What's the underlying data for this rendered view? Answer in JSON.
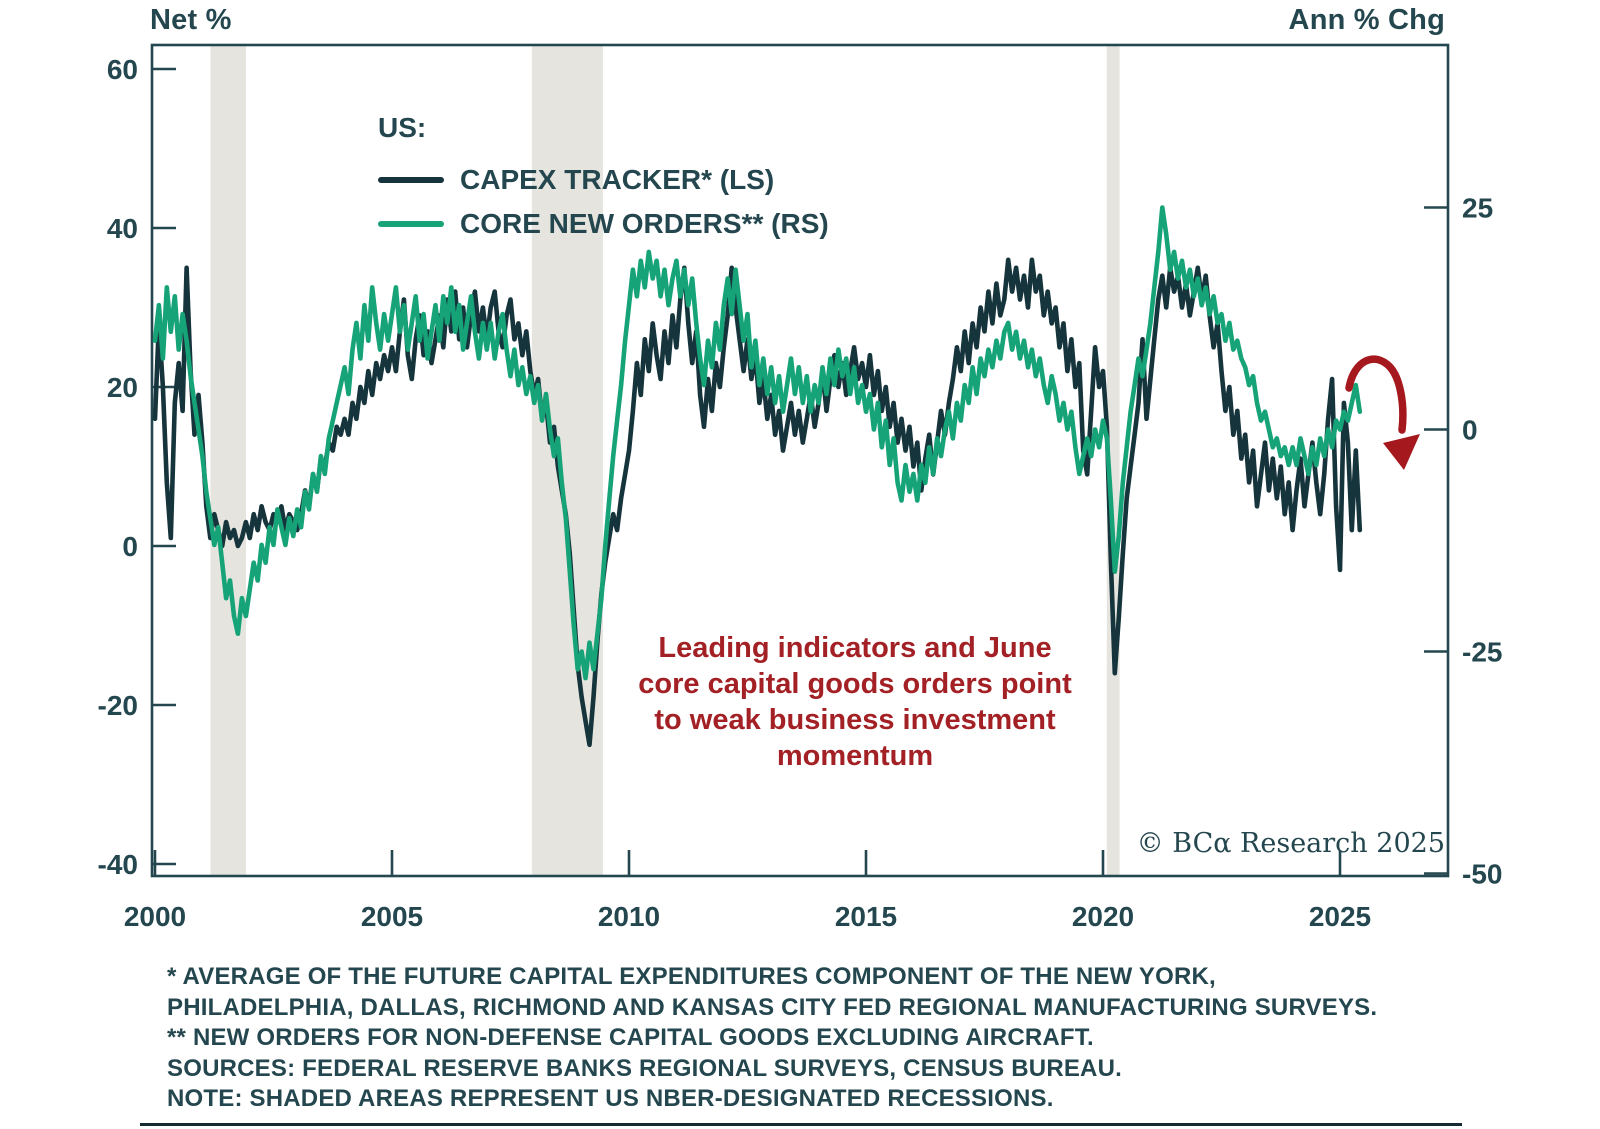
{
  "legend": {
    "group_label": "US:"
  },
  "annotation": {
    "color": "#a32025",
    "lines": [
      "Leading indicators and June",
      "core capital goods orders point",
      "to weak business investment",
      "momentum"
    ]
  },
  "watermark": "© BCα Research 2025",
  "footnotes": [
    "* AVERAGE OF THE FUTURE CAPITAL EXPENDITURES COMPONENT OF THE NEW YORK,",
    "PHILADELPHIA, DALLAS, RICHMOND AND KANSAS CITY FED REGIONAL MANUFACTURING SURVEYS.",
    "** NEW ORDERS FOR NON-DEFENSE CAPITAL GOODS EXCLUDING AIRCRAFT.",
    "SOURCES: FEDERAL RESERVE BANKS REGIONAL SURVEYS, CENSUS BUREAU.",
    "NOTE: SHADED AREAS REPRESENT US NBER-DESIGNATED RECESSIONS."
  ],
  "chart_data": {
    "type": "line",
    "axis_color": "#24464e",
    "recession_color": "#e6e4de",
    "recessions": [
      {
        "start": 2001.17,
        "end": 2001.92
      },
      {
        "start": 2007.95,
        "end": 2009.45
      },
      {
        "start": 2020.08,
        "end": 2020.35
      }
    ],
    "x_ticks": [
      2000,
      2005,
      2010,
      2015,
      2020,
      2025
    ],
    "x_range": [
      2000,
      2027.3
    ],
    "x_start": 2000.0,
    "x_step_months": 1,
    "left_axis": {
      "title": "Net %",
      "ticks": [
        60,
        40,
        20,
        0,
        -20,
        -40
      ],
      "range": [
        -41.5,
        63
      ]
    },
    "right_axis": {
      "title": "Ann % Chg",
      "ticks": [
        25,
        0,
        -25,
        -50
      ],
      "range": [
        -50.3,
        43.6
      ]
    },
    "arrow": {
      "color": "#a5181d",
      "meaning": "downward momentum at end of series"
    },
    "series": [
      {
        "name": "CAPEX TRACKER* (LS)",
        "axis": "left",
        "color": "#16343c",
        "values": [
          16,
          28,
          20,
          8,
          1,
          18,
          23,
          17,
          35,
          22,
          14,
          19,
          13,
          5,
          1,
          4,
          2,
          0,
          3,
          1,
          2,
          0,
          1,
          3,
          1,
          4,
          2,
          5,
          3,
          2,
          4,
          3,
          5,
          2,
          4,
          3,
          2,
          4,
          7,
          5,
          9,
          7,
          11,
          10,
          13,
          12,
          15,
          14,
          16,
          14,
          18,
          16,
          20,
          18,
          22,
          19,
          23,
          21,
          24,
          22,
          25,
          22,
          27,
          31,
          24,
          21,
          26,
          29,
          24,
          27,
          23,
          26,
          29,
          25,
          31,
          27,
          32,
          26,
          30,
          25,
          29,
          32,
          27,
          30,
          26,
          30,
          32,
          27,
          25,
          29,
          31,
          26,
          28,
          24,
          27,
          22,
          19,
          21,
          16,
          18,
          13,
          15,
          10,
          7,
          4,
          -1,
          -8,
          -15,
          -19,
          -22,
          -25,
          -19,
          -12,
          -6,
          -2,
          1,
          4,
          2,
          6,
          9,
          12,
          17,
          23,
          19,
          26,
          22,
          28,
          24,
          21,
          27,
          23,
          29,
          25,
          31,
          35,
          28,
          23,
          27,
          19,
          15,
          21,
          17,
          23,
          20,
          25,
          29,
          35,
          30,
          26,
          22,
          26,
          21,
          24,
          18,
          21,
          16,
          19,
          14,
          17,
          12,
          15,
          18,
          14,
          17,
          13,
          16,
          19,
          15,
          18,
          22,
          17,
          21,
          24,
          20,
          23,
          19,
          22,
          25,
          21,
          23,
          20,
          24,
          19,
          22,
          17,
          20,
          15,
          18,
          13,
          16,
          12,
          15,
          10,
          13,
          7,
          11,
          14,
          9,
          13,
          17,
          14,
          18,
          21,
          25,
          22,
          27,
          23,
          28,
          25,
          30,
          27,
          32,
          28,
          33,
          29,
          31,
          36,
          32,
          35,
          31,
          34,
          30,
          36,
          32,
          34,
          29,
          32,
          28,
          30,
          25,
          28,
          22,
          26,
          20,
          23,
          12,
          9,
          17,
          25,
          20,
          22,
          15,
          -2,
          -16,
          -9,
          -1,
          6,
          10,
          14,
          18,
          26,
          16,
          21,
          26,
          31,
          34,
          30,
          35,
          32,
          34,
          30,
          33,
          29,
          32,
          35,
          31,
          34,
          29,
          25,
          28,
          22,
          17,
          20,
          14,
          17,
          11,
          14,
          8,
          12,
          5,
          9,
          13,
          7,
          11,
          6,
          10,
          4,
          8,
          2,
          7,
          11,
          5,
          9,
          13,
          8,
          4,
          9,
          16,
          21,
          5,
          -3,
          18,
          13,
          2,
          12,
          2
        ]
      },
      {
        "name": "CORE NEW ORDERS** (RS)",
        "axis": "right",
        "color": "#17a378",
        "values": [
          10,
          14,
          8,
          16,
          11,
          15,
          9,
          13,
          10,
          6,
          3,
          0,
          -3,
          -7,
          -10,
          -13,
          -11,
          -15,
          -19,
          -17,
          -21,
          -23,
          -19,
          -21,
          -18,
          -15,
          -17,
          -13,
          -15,
          -11,
          -13,
          -9,
          -11,
          -13,
          -10,
          -12,
          -9,
          -11,
          -7,
          -9,
          -5,
          -7,
          -3,
          -5,
          -1,
          1,
          3,
          5,
          7,
          4,
          9,
          12,
          8,
          14,
          10,
          16,
          12,
          9,
          13,
          10,
          13,
          16,
          11,
          14,
          9,
          12,
          15,
          10,
          13,
          8,
          11,
          14,
          10,
          15,
          12,
          16,
          11,
          14,
          9,
          12,
          15,
          11,
          8,
          12,
          9,
          12,
          8,
          11,
          13,
          9,
          6,
          9,
          5,
          7,
          4,
          6,
          3,
          5,
          1,
          4,
          0,
          -3,
          -1,
          -6,
          -10,
          -16,
          -22,
          -27,
          -25,
          -28,
          -24,
          -27,
          -23,
          -19,
          -13,
          -8,
          -3,
          1,
          5,
          10,
          14,
          18,
          15,
          19,
          16,
          20,
          17,
          19,
          15,
          18,
          14,
          17,
          19,
          15,
          18,
          14,
          17,
          12,
          8,
          5,
          10,
          7,
          12,
          9,
          14,
          17,
          13,
          18,
          14,
          10,
          13,
          7,
          10,
          5,
          8,
          4,
          7,
          3,
          6,
          2,
          5,
          8,
          4,
          7,
          3,
          6,
          2,
          5,
          3,
          7,
          4,
          8,
          5,
          9,
          6,
          8,
          4,
          7,
          3,
          5,
          2,
          4,
          0,
          3,
          -2,
          1,
          -4,
          -1,
          -6,
          -8,
          -4,
          -7,
          -5,
          -8,
          -4,
          -6,
          -2,
          -5,
          -1,
          -3,
          0,
          2,
          -1,
          3,
          1,
          5,
          3,
          7,
          4,
          8,
          6,
          9,
          7,
          10,
          8,
          11,
          12,
          9,
          11,
          8,
          10,
          7,
          9,
          6,
          8,
          5,
          3,
          6,
          4,
          1,
          3,
          0,
          2,
          -2,
          -5,
          -3,
          -1,
          -3,
          0,
          -2,
          1,
          -1,
          -8,
          -16,
          -12,
          -6,
          -2,
          2,
          5,
          8,
          6,
          9,
          12,
          16,
          20,
          25,
          22,
          18,
          20,
          17,
          19,
          16,
          18,
          15,
          17,
          14,
          16,
          13,
          15,
          12,
          13,
          10,
          12,
          9,
          10,
          8,
          7,
          5,
          6,
          3,
          1,
          2,
          0,
          -2,
          -1,
          -3,
          -2,
          -4,
          -2,
          -4,
          -1,
          -3,
          -5,
          -2,
          -4,
          -1,
          -3,
          0,
          -2,
          1,
          0,
          2,
          1,
          3,
          5,
          2
        ]
      }
    ]
  }
}
